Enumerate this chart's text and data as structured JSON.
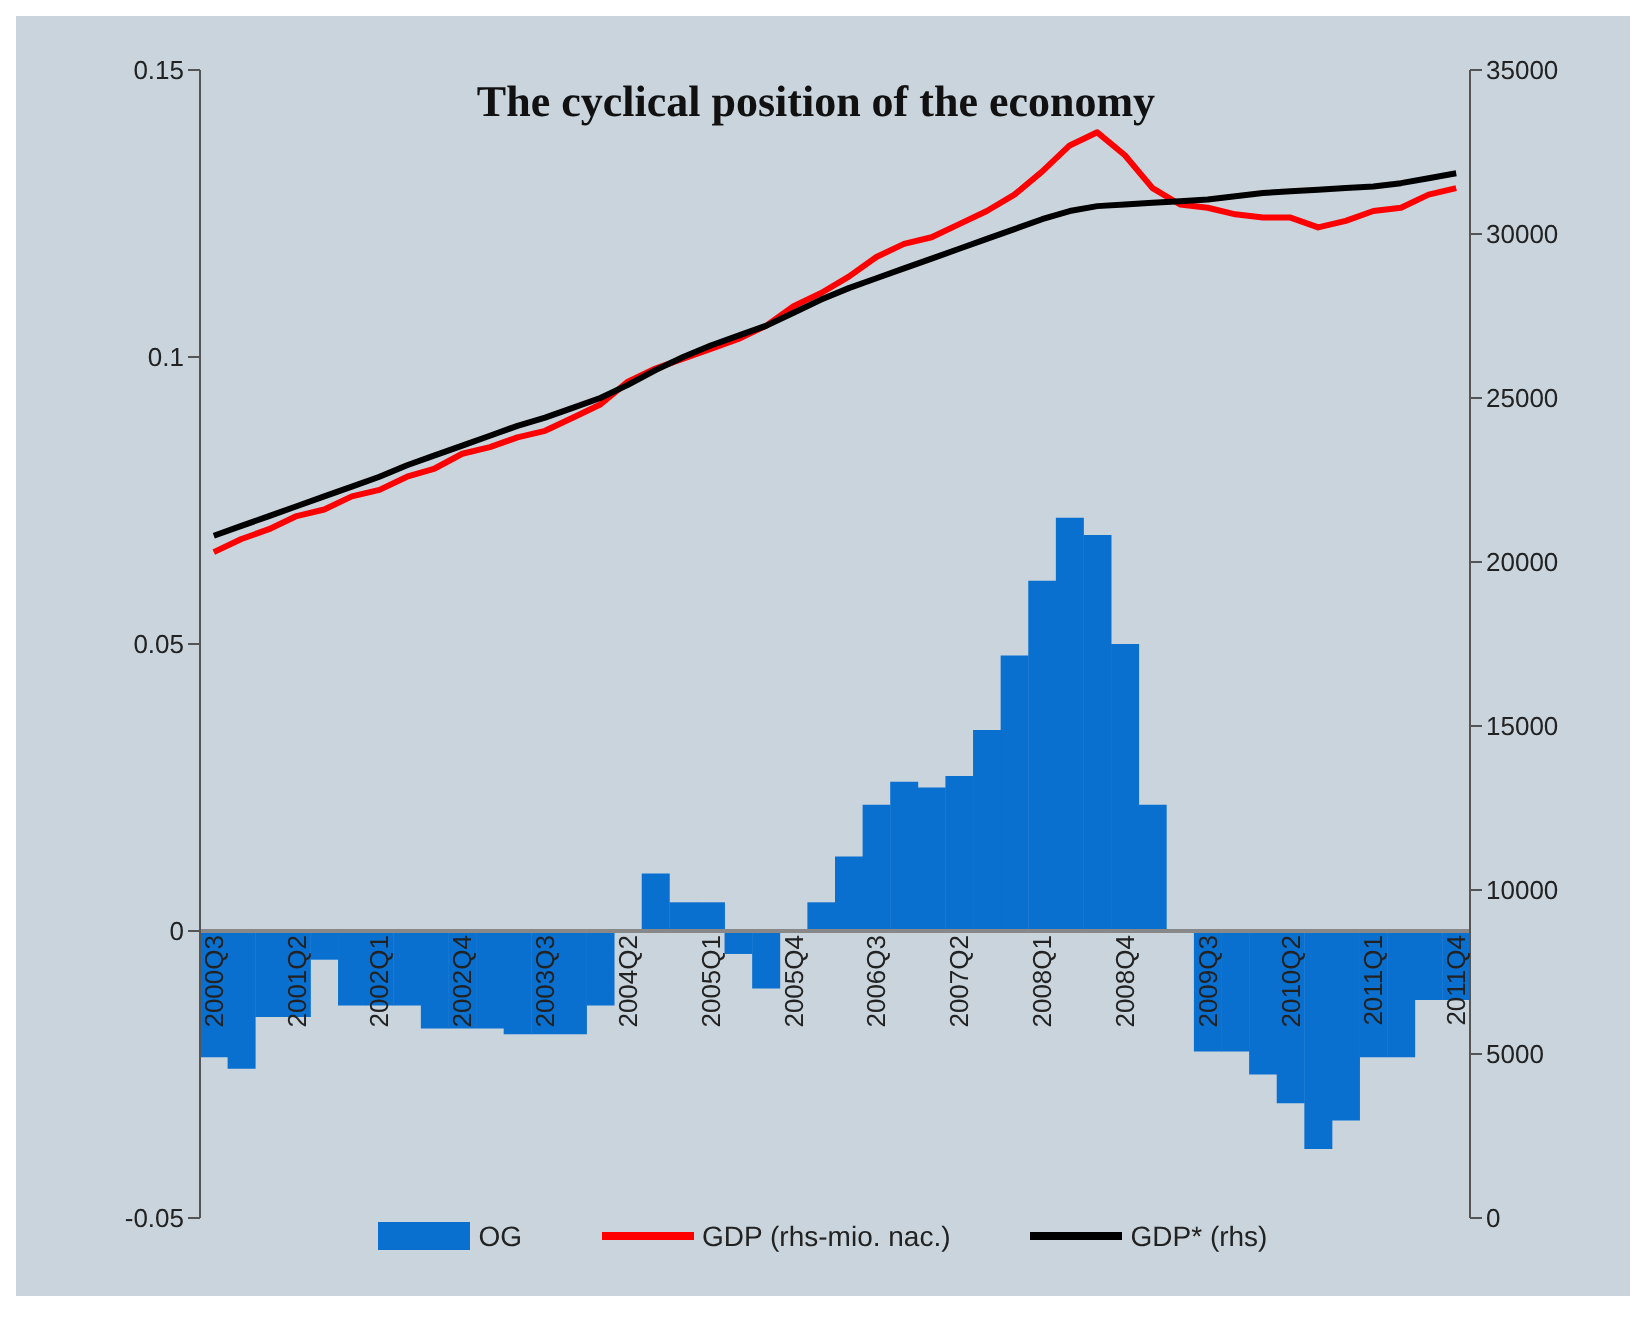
{
  "chart_data": {
    "type": "bar",
    "title": "The cyclical position of the economy",
    "categories": [
      "2000Q3",
      null,
      null,
      "2001Q2",
      null,
      null,
      "2002Q1",
      null,
      null,
      "2002Q4",
      null,
      null,
      "2003Q3",
      null,
      null,
      "2004Q2",
      null,
      null,
      "2005Q1",
      null,
      null,
      "2005Q4",
      null,
      null,
      "2006Q3",
      null,
      null,
      "2007Q2",
      null,
      null,
      "2008Q1",
      null,
      null,
      "2008Q4",
      null,
      null,
      "2009Q3",
      null,
      null,
      "2010Q2",
      null,
      null,
      "2011Q1",
      null,
      null,
      "2011Q4"
    ],
    "series": [
      {
        "name": "OG",
        "color": "#0a70d0",
        "values": [
          -0.022,
          -0.024,
          -0.015,
          -0.015,
          -0.005,
          -0.013,
          -0.013,
          -0.013,
          -0.017,
          -0.017,
          -0.017,
          -0.018,
          -0.018,
          -0.018,
          -0.013,
          0,
          0.01,
          0.005,
          0.005,
          -0.004,
          -0.01,
          0,
          0.005,
          0.013,
          0.022,
          0.026,
          0.025,
          0.027,
          0.035,
          0.048,
          0.061,
          0.072,
          0.069,
          0.05,
          0.022,
          0,
          -0.021,
          -0.021,
          -0.025,
          -0.03,
          -0.038,
          -0.033,
          -0.022,
          -0.022,
          -0.012,
          -0.012
        ]
      },
      {
        "name": "GDP (rhs-mio. nac.)",
        "type": "line",
        "axis": "y2",
        "color": "#ff0000",
        "values": [
          20300,
          20700,
          21000,
          21400,
          21600,
          22000,
          22200,
          22600,
          22850,
          23300,
          23500,
          23800,
          24000,
          24400,
          24800,
          25500,
          25900,
          26200,
          26500,
          26800,
          27200,
          27800,
          28200,
          28700,
          29300,
          29700,
          29900,
          30300,
          30700,
          31200,
          31900,
          32700,
          33100,
          32400,
          31400,
          30900,
          30800,
          30600,
          30500,
          30500,
          30200,
          30400,
          30700,
          30800,
          31200,
          31400
        ]
      },
      {
        "name": "GDP* (rhs)",
        "type": "line",
        "axis": "y2",
        "color": "#000000",
        "values": [
          20800,
          21100,
          21400,
          21700,
          22000,
          22300,
          22600,
          22950,
          23250,
          23550,
          23850,
          24150,
          24400,
          24700,
          25000,
          25400,
          25850,
          26250,
          26600,
          26900,
          27200,
          27600,
          28000,
          28350,
          28650,
          28950,
          29250,
          29550,
          29850,
          30150,
          30450,
          30700,
          30850,
          30900,
          30950,
          31000,
          31050,
          31150,
          31250,
          31300,
          31350,
          31400,
          31450,
          31550,
          31700,
          31850
        ]
      }
    ],
    "ylim": [
      -0.05,
      0.15
    ],
    "yticks": [
      -0.05,
      0,
      0.05,
      0.1,
      0.15
    ],
    "y2lim": [
      0,
      35000
    ],
    "y2ticks": [
      0,
      5000,
      10000,
      15000,
      20000,
      25000,
      30000,
      35000
    ],
    "legend": "bottom"
  }
}
